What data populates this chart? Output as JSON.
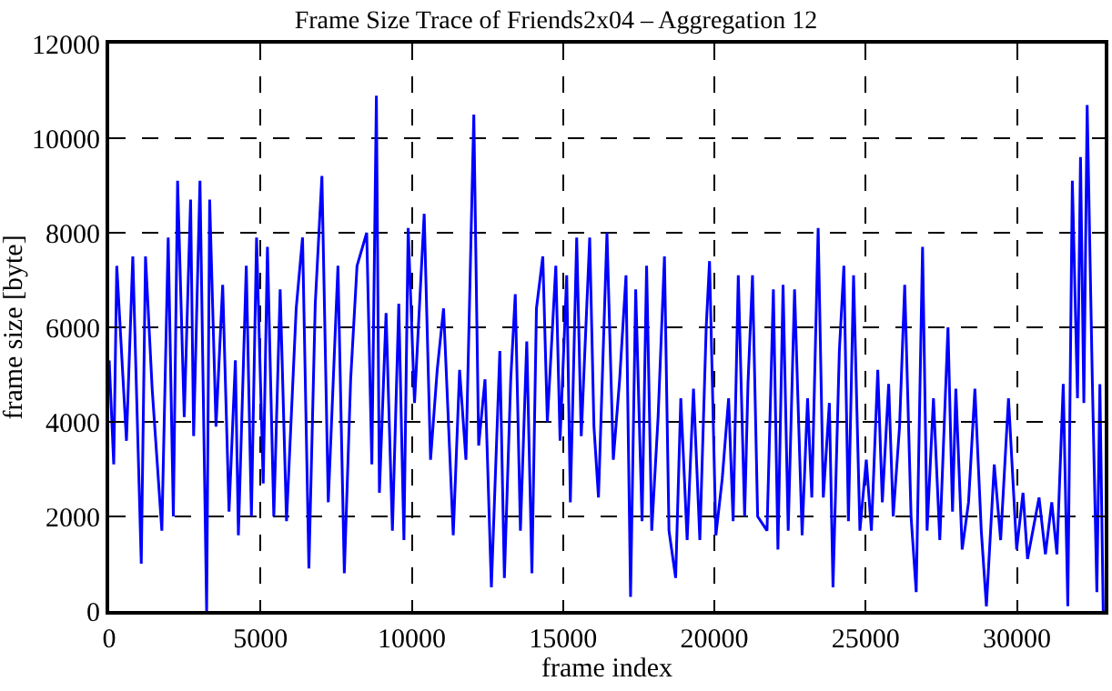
{
  "chart_data": {
    "type": "line",
    "title": "Frame Size Trace of Friends2x04 – Aggregation 12",
    "xlabel": "frame index",
    "ylabel": "frame size [byte]",
    "xlim": [
      0,
      32900
    ],
    "ylim": [
      0,
      12000
    ],
    "xticks": [
      0,
      5000,
      10000,
      15000,
      20000,
      25000,
      30000
    ],
    "yticks": [
      0,
      2000,
      4000,
      6000,
      8000,
      10000,
      12000
    ],
    "grid": true,
    "line_style": "solid",
    "marker": "none",
    "series": [
      {
        "color": "#0000ff",
        "x": [
          0,
          150,
          250,
          570,
          780,
          1060,
          1200,
          1420,
          1740,
          1950,
          2120,
          2260,
          2480,
          2690,
          2790,
          3000,
          3220,
          3320,
          3530,
          3750,
          3960,
          4170,
          4270,
          4530,
          4700,
          4870,
          5090,
          5230,
          5440,
          5650,
          5860,
          6180,
          6390,
          6600,
          6810,
          7030,
          7240,
          7560,
          7770,
          7980,
          8190,
          8510,
          8680,
          8830,
          8930,
          9150,
          9360,
          9570,
          9740,
          9880,
          10090,
          10410,
          10620,
          10840,
          11050,
          11370,
          11580,
          11790,
          12050,
          12210,
          12420,
          12630,
          12910,
          13060,
          13270,
          13420,
          13590,
          13800,
          13970,
          14120,
          14330,
          14480,
          14760,
          14900,
          15120,
          15240,
          15450,
          15600,
          15880,
          16020,
          16170,
          16450,
          16660,
          16870,
          17080,
          17230,
          17400,
          17610,
          17760,
          17930,
          18140,
          18350,
          18500,
          18720,
          18890,
          19100,
          19310,
          19520,
          19730,
          19840,
          20050,
          20260,
          20470,
          20620,
          20790,
          21000,
          21110,
          21260,
          21430,
          21740,
          21950,
          22100,
          22270,
          22440,
          22650,
          22900,
          23080,
          23220,
          23430,
          23600,
          23800,
          23920,
          24130,
          24280,
          24430,
          24600,
          24810,
          25020,
          25190,
          25400,
          25550,
          25760,
          25910,
          26120,
          26290,
          26500,
          26670,
          26880,
          27030,
          27240,
          27450,
          27720,
          27870,
          27980,
          28190,
          28400,
          28610,
          28820,
          28990,
          29250,
          29460,
          29720,
          29990,
          30200,
          30350,
          30730,
          30940,
          31150,
          31320,
          31530,
          31680,
          31830,
          32000,
          32100,
          32210,
          32320,
          32490,
          32640,
          32740,
          32850
        ],
        "values": [
          5300,
          3100,
          7300,
          3600,
          7500,
          1000,
          7500,
          4700,
          1700,
          7900,
          2000,
          9100,
          4100,
          8700,
          3700,
          9100,
          0,
          8700,
          3900,
          6900,
          2100,
          5300,
          1600,
          7300,
          2000,
          7900,
          2700,
          7700,
          2000,
          6800,
          1900,
          6400,
          7900,
          900,
          6500,
          9200,
          2300,
          7300,
          800,
          4900,
          7300,
          8000,
          3100,
          10900,
          2500,
          6300,
          1700,
          6500,
          1500,
          8100,
          4400,
          8400,
          3200,
          5100,
          6400,
          1600,
          5100,
          3200,
          10500,
          3500,
          4900,
          500,
          5500,
          700,
          4900,
          6700,
          1700,
          5700,
          800,
          6400,
          7500,
          4000,
          7300,
          3600,
          7100,
          2300,
          7900,
          3700,
          7900,
          3900,
          2400,
          8000,
          3200,
          4900,
          7100,
          300,
          6800,
          1900,
          7300,
          1700,
          4100,
          7500,
          1700,
          700,
          4500,
          1500,
          4700,
          1500,
          6000,
          7400,
          1600,
          2800,
          4500,
          1900,
          7100,
          2000,
          4800,
          7100,
          2000,
          1700,
          6800,
          1300,
          6900,
          1700,
          6800,
          1600,
          4500,
          2400,
          8100,
          2400,
          4400,
          500,
          5500,
          7300,
          1900,
          7100,
          1700,
          3200,
          1700,
          5100,
          2300,
          4800,
          2000,
          3900,
          6900,
          2000,
          400,
          7700,
          1700,
          4500,
          1500,
          6000,
          2100,
          4700,
          1300,
          2300,
          4700,
          1700,
          100,
          3100,
          1500,
          4500,
          1300,
          2500,
          1100,
          2400,
          1200,
          2300,
          1200,
          4800,
          100,
          9100,
          4500,
          9600,
          4400,
          10700,
          4900,
          400,
          4800,
          0
        ]
      }
    ]
  }
}
